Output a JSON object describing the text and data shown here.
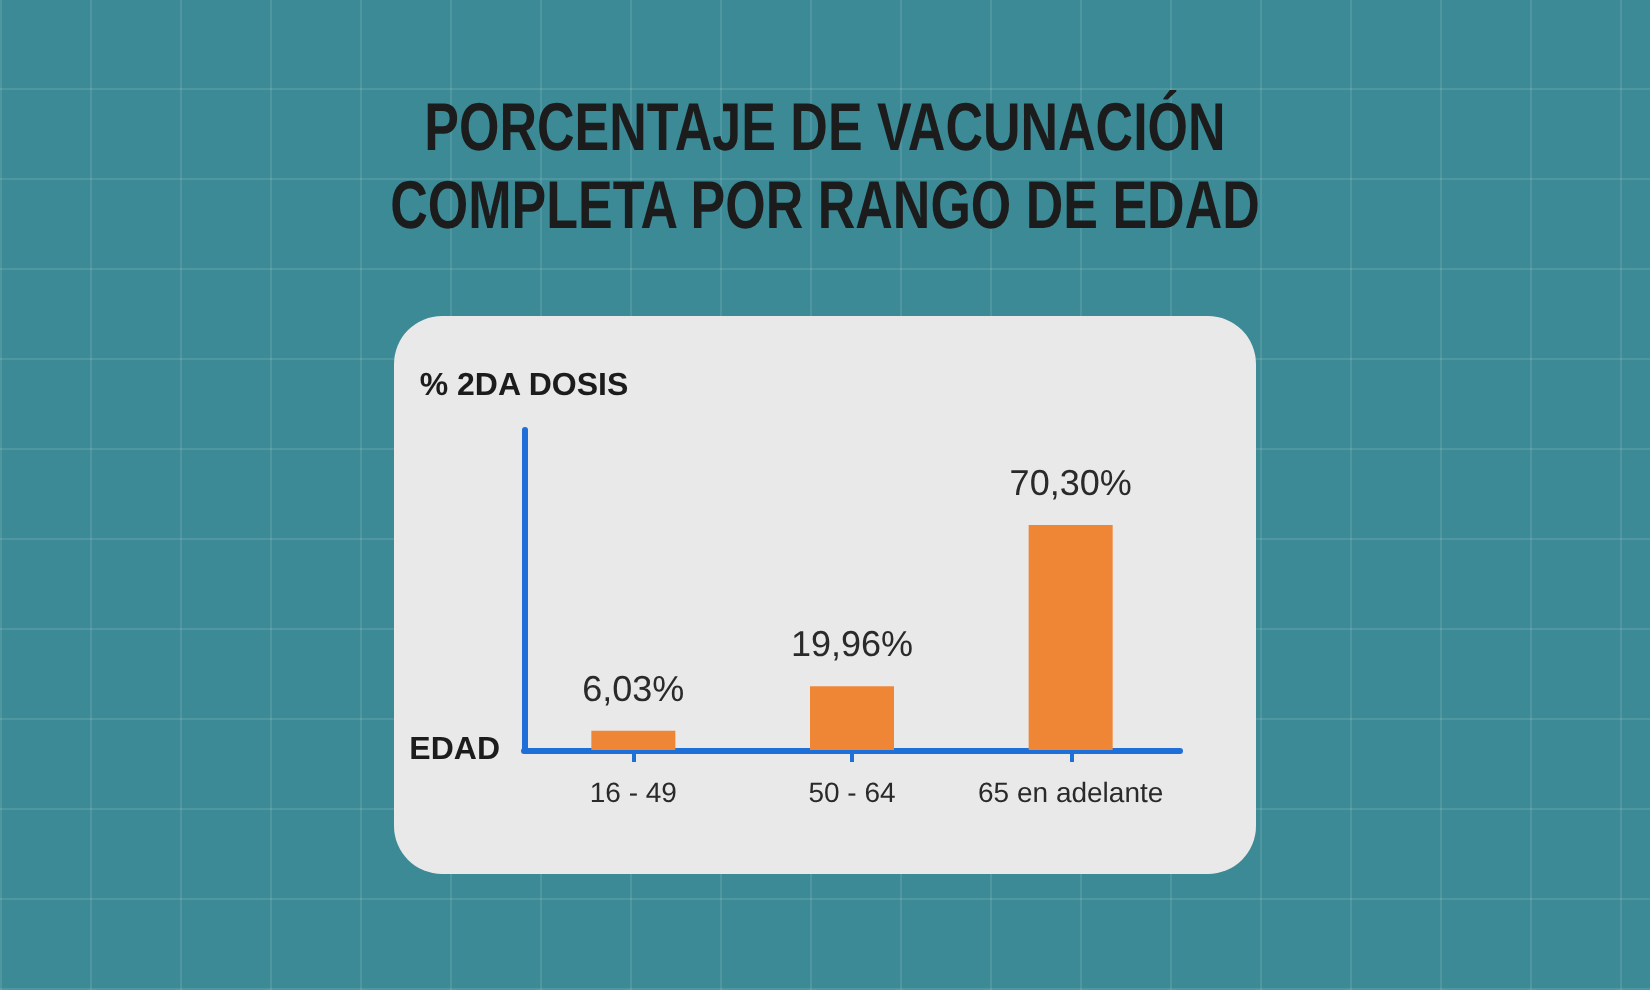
{
  "chart_data": {
    "type": "bar",
    "title": "PORCENTAJE DE VACUNACIÓN COMPLETA POR RANGO DE EDAD",
    "xlabel": "EDAD",
    "ylabel": "% 2DA DOSIS",
    "categories": [
      "16 - 49",
      "50 - 64",
      "65 en adelante"
    ],
    "values": [
      6.03,
      19.96,
      70.3
    ],
    "value_labels": [
      "6,03%",
      "19,96%",
      "70,30%"
    ],
    "color": "#ef8636",
    "ylim": [
      0,
      100
    ],
    "tick_labels": "x"
  }
}
